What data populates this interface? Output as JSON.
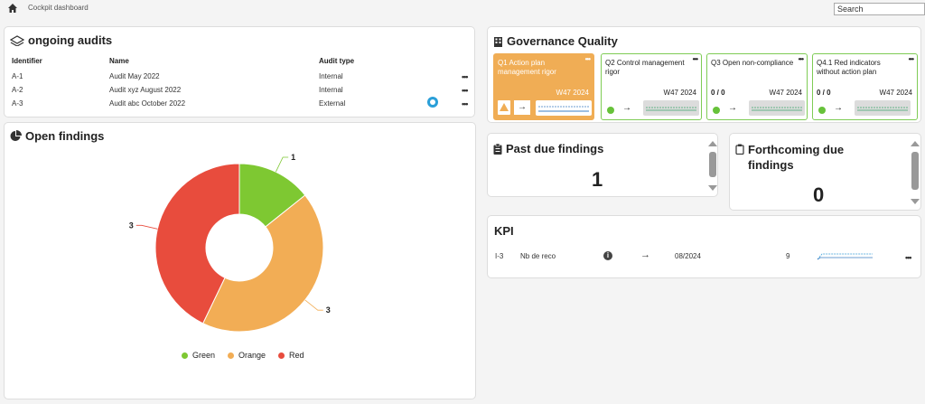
{
  "topbar": {
    "breadcrumb": "Cockpit dashboard",
    "search_placeholder": "Search"
  },
  "audits": {
    "title": "ongoing audits",
    "headers": [
      "Identifier",
      "Name",
      "Audit type"
    ],
    "rows": [
      {
        "id": "A-1",
        "name": "Audit May 2022",
        "type": "Internal"
      },
      {
        "id": "A-2",
        "name": "Audit xyz August 2022",
        "type": "Internal"
      },
      {
        "id": "A-3",
        "name": "Audit abc October 2022",
        "type": "External"
      }
    ]
  },
  "findings": {
    "title": "Open findings",
    "legend": [
      "Green",
      "Orange",
      "Red"
    ]
  },
  "chart_data": {
    "type": "pie",
    "variant": "donut",
    "categories": [
      "Green",
      "Orange",
      "Red"
    ],
    "values": [
      1,
      3,
      3
    ],
    "value_labels": [
      "1",
      "3",
      "3"
    ],
    "colors": [
      "#7ec832",
      "#f2ad55",
      "#e84c3d"
    ],
    "legend_position": "bottom"
  },
  "governance": {
    "title": "Governance Quality",
    "cards": [
      {
        "title": "Q1 Action plan management rigor",
        "week": "W47 2024",
        "value": "",
        "active": true
      },
      {
        "title": "Q2 Control management rigor",
        "week": "W47 2024",
        "value": "",
        "active": false
      },
      {
        "title": "Q3 Open non-compliance",
        "week": "W47 2024",
        "value": "0 / 0",
        "active": false
      },
      {
        "title": "Q4.1 Red indicators without action plan",
        "week": "W47 2024",
        "value": "0 / 0",
        "active": false
      }
    ],
    "arrow": "→"
  },
  "past_due": {
    "title": "Past due findings",
    "value": "1"
  },
  "forthcoming": {
    "title": "Forthcoming due findings",
    "value": "0"
  },
  "kpi": {
    "title": "KPI",
    "rows": [
      {
        "id": "I-3",
        "name": "Nb de reco",
        "arrow": "→",
        "date": "08/2024",
        "value": "9"
      }
    ]
  }
}
